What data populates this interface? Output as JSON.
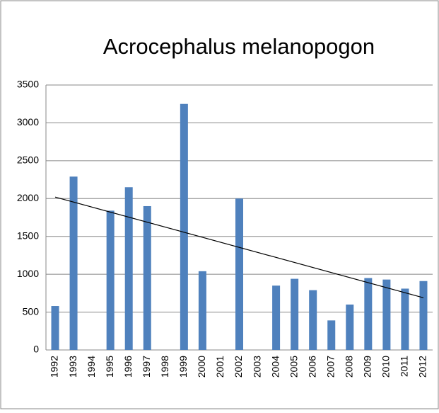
{
  "chart_data": {
    "type": "bar",
    "title": "Acrocephalus melanopogon",
    "categories": [
      "1992",
      "1993",
      "1994",
      "1995",
      "1996",
      "1997",
      "1998",
      "1999",
      "2000",
      "2001",
      "2002",
      "2003",
      "2004",
      "2005",
      "2006",
      "2007",
      "2008",
      "2009",
      "2010",
      "2011",
      "2012"
    ],
    "values": [
      580,
      2290,
      null,
      1840,
      2150,
      1900,
      null,
      3250,
      1040,
      null,
      2000,
      null,
      850,
      940,
      790,
      390,
      600,
      950,
      930,
      810,
      910
    ],
    "color": "#4f81bd",
    "trendline": {
      "values": [
        2020,
        690
      ],
      "color": "#000000"
    },
    "ylim": [
      0,
      3500
    ],
    "yticks": [
      0,
      500,
      1000,
      1500,
      2000,
      2500,
      3000,
      3500
    ],
    "grid": true
  }
}
